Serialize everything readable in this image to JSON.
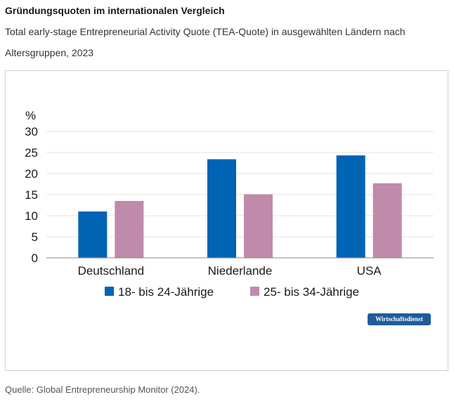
{
  "header": {
    "title": "Gründungsquoten im internationalen Vergleich",
    "subtitle": "Total early-stage Entrepreneurial Activity Quote (TEA-Quote) in ausgewählten Ländern nach Altersgruppen, 2023"
  },
  "badge": "Wirtschaftsdienst",
  "source": "Quelle: Global Entrepreneurship Monitor (2024).",
  "chart_data": {
    "type": "bar",
    "title": "Gründungsquoten im internationalen Vergleich",
    "ylabel": "%",
    "xlabel": "",
    "ylim": [
      0,
      30
    ],
    "yticks": [
      0,
      5,
      10,
      15,
      20,
      25,
      30
    ],
    "grid": true,
    "legend_position": "bottom",
    "categories": [
      "Deutschland",
      "Niederlande",
      "USA"
    ],
    "series": [
      {
        "name": "18- bis 24-Jährige",
        "color": "#0064b4",
        "values": [
          11,
          23.4,
          24.3
        ]
      },
      {
        "name": "25- bis 34-Jährige",
        "color": "#c08aab",
        "values": [
          13.5,
          15.1,
          17.7
        ]
      }
    ]
  }
}
